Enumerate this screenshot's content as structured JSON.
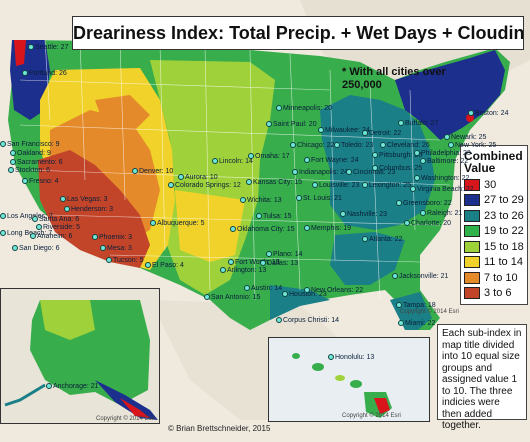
{
  "title": "Dreariness Index: Total Precip. + Wet Days + Cloudiness*",
  "note": "* With all cities over 250,000",
  "legend": {
    "title": "Combined Value",
    "items": [
      {
        "label": "30",
        "color": "#d8151b"
      },
      {
        "label": "27 to 29",
        "color": "#1d2f8c"
      },
      {
        "label": "23 to 26",
        "color": "#1a7f86"
      },
      {
        "label": "19 to 22",
        "color": "#2fb24a"
      },
      {
        "label": "15 to 18",
        "color": "#9fd23a"
      },
      {
        "label": "11 to 14",
        "color": "#f0d22a"
      },
      {
        "label": "7 to 10",
        "color": "#e48a2a"
      },
      {
        "label": "3 to 6",
        "color": "#c2452a"
      }
    ]
  },
  "description": "Each sub-index in map title divided into 10 equal size groups and assigned value 1 to 10. The three indicies were then added together.",
  "credit": "© Brian Brettschneider, 2015",
  "copyright_labels": [
    "Copyright © 2014 Esri",
    "Copyright © 2014 Esri",
    "Copyright © 2014 Esri"
  ],
  "cities": [
    {
      "label": "Seattle: 27"
    },
    {
      "label": "Portland: 26"
    },
    {
      "label": "San Francisco: 9"
    },
    {
      "label": "Oakland: 9"
    },
    {
      "label": "Sacramento: 6"
    },
    {
      "label": "Stockton: 6"
    },
    {
      "label": "Fresno: 4"
    },
    {
      "label": "Las Vegas: 3"
    },
    {
      "label": "Henderson: 3"
    },
    {
      "label": "Los Angeles: 7"
    },
    {
      "label": "Santa Ana: 6"
    },
    {
      "label": "Riverside: 5"
    },
    {
      "label": "Long Beach: 7"
    },
    {
      "label": "Anaheim: 6"
    },
    {
      "label": "San Diego: 6"
    },
    {
      "label": "Phoenix: 3"
    },
    {
      "label": "Mesa: 3"
    },
    {
      "label": "Tucson: 5"
    },
    {
      "label": "Albuquerque: 5"
    },
    {
      "label": "El Paso: 4"
    },
    {
      "label": "Denver: 10"
    },
    {
      "label": "Aurora: 10"
    },
    {
      "label": "Colorado Springs: 12"
    },
    {
      "label": "Lincoln: 14"
    },
    {
      "label": "Omaha: 17"
    },
    {
      "label": "Kansas City: 15"
    },
    {
      "label": "Wichita: 13"
    },
    {
      "label": "Tulsa: 15"
    },
    {
      "label": "Oklahoma City: 15"
    },
    {
      "label": "Fort Worth: 13"
    },
    {
      "label": "Dallas: 13"
    },
    {
      "label": "Arlington: 13"
    },
    {
      "label": "Plano: 14"
    },
    {
      "label": "Austin: 14"
    },
    {
      "label": "San Antonio: 15"
    },
    {
      "label": "Houston: 23"
    },
    {
      "label": "Corpus Christi: 14"
    },
    {
      "label": "Minneapolis: 20"
    },
    {
      "label": "Saint Paul: 20"
    },
    {
      "label": "Chicago: 22"
    },
    {
      "label": "Milwaukee: 24"
    },
    {
      "label": "Detroit: 22"
    },
    {
      "label": "Toledo: 23"
    },
    {
      "label": "Fort Wayne: 24"
    },
    {
      "label": "Indianapolis: 24"
    },
    {
      "label": "St. Louis: 21"
    },
    {
      "label": "Louisville: 23"
    },
    {
      "label": "Cincinnati: 23"
    },
    {
      "label": "Lexington: 25"
    },
    {
      "label": "Columbus: 25"
    },
    {
      "label": "Cleveland: 26"
    },
    {
      "label": "Pittsburgh: 26"
    },
    {
      "label": "Buffalo: 27"
    },
    {
      "label": "Boston: 24"
    },
    {
      "label": "Newark: 25"
    },
    {
      "label": "New York: 25"
    },
    {
      "label": "Philadelphia: 23"
    },
    {
      "label": "Baltimore: 22"
    },
    {
      "label": "Washington: 22"
    },
    {
      "label": "Virginia Beach: 22"
    },
    {
      "label": "Greensboro: 22"
    },
    {
      "label": "Raleigh: 21"
    },
    {
      "label": "Charlotte: 20"
    },
    {
      "label": "Nashville: 23"
    },
    {
      "label": "Memphis: 19"
    },
    {
      "label": "Atlanta: 22"
    },
    {
      "label": "New Orleans: 22"
    },
    {
      "label": "Jacksonville: 21"
    },
    {
      "label": "Tampa: 18"
    },
    {
      "label": "Miami: 22"
    },
    {
      "label": "Anchorage: 21"
    },
    {
      "label": "Honolulu: 13"
    }
  ]
}
